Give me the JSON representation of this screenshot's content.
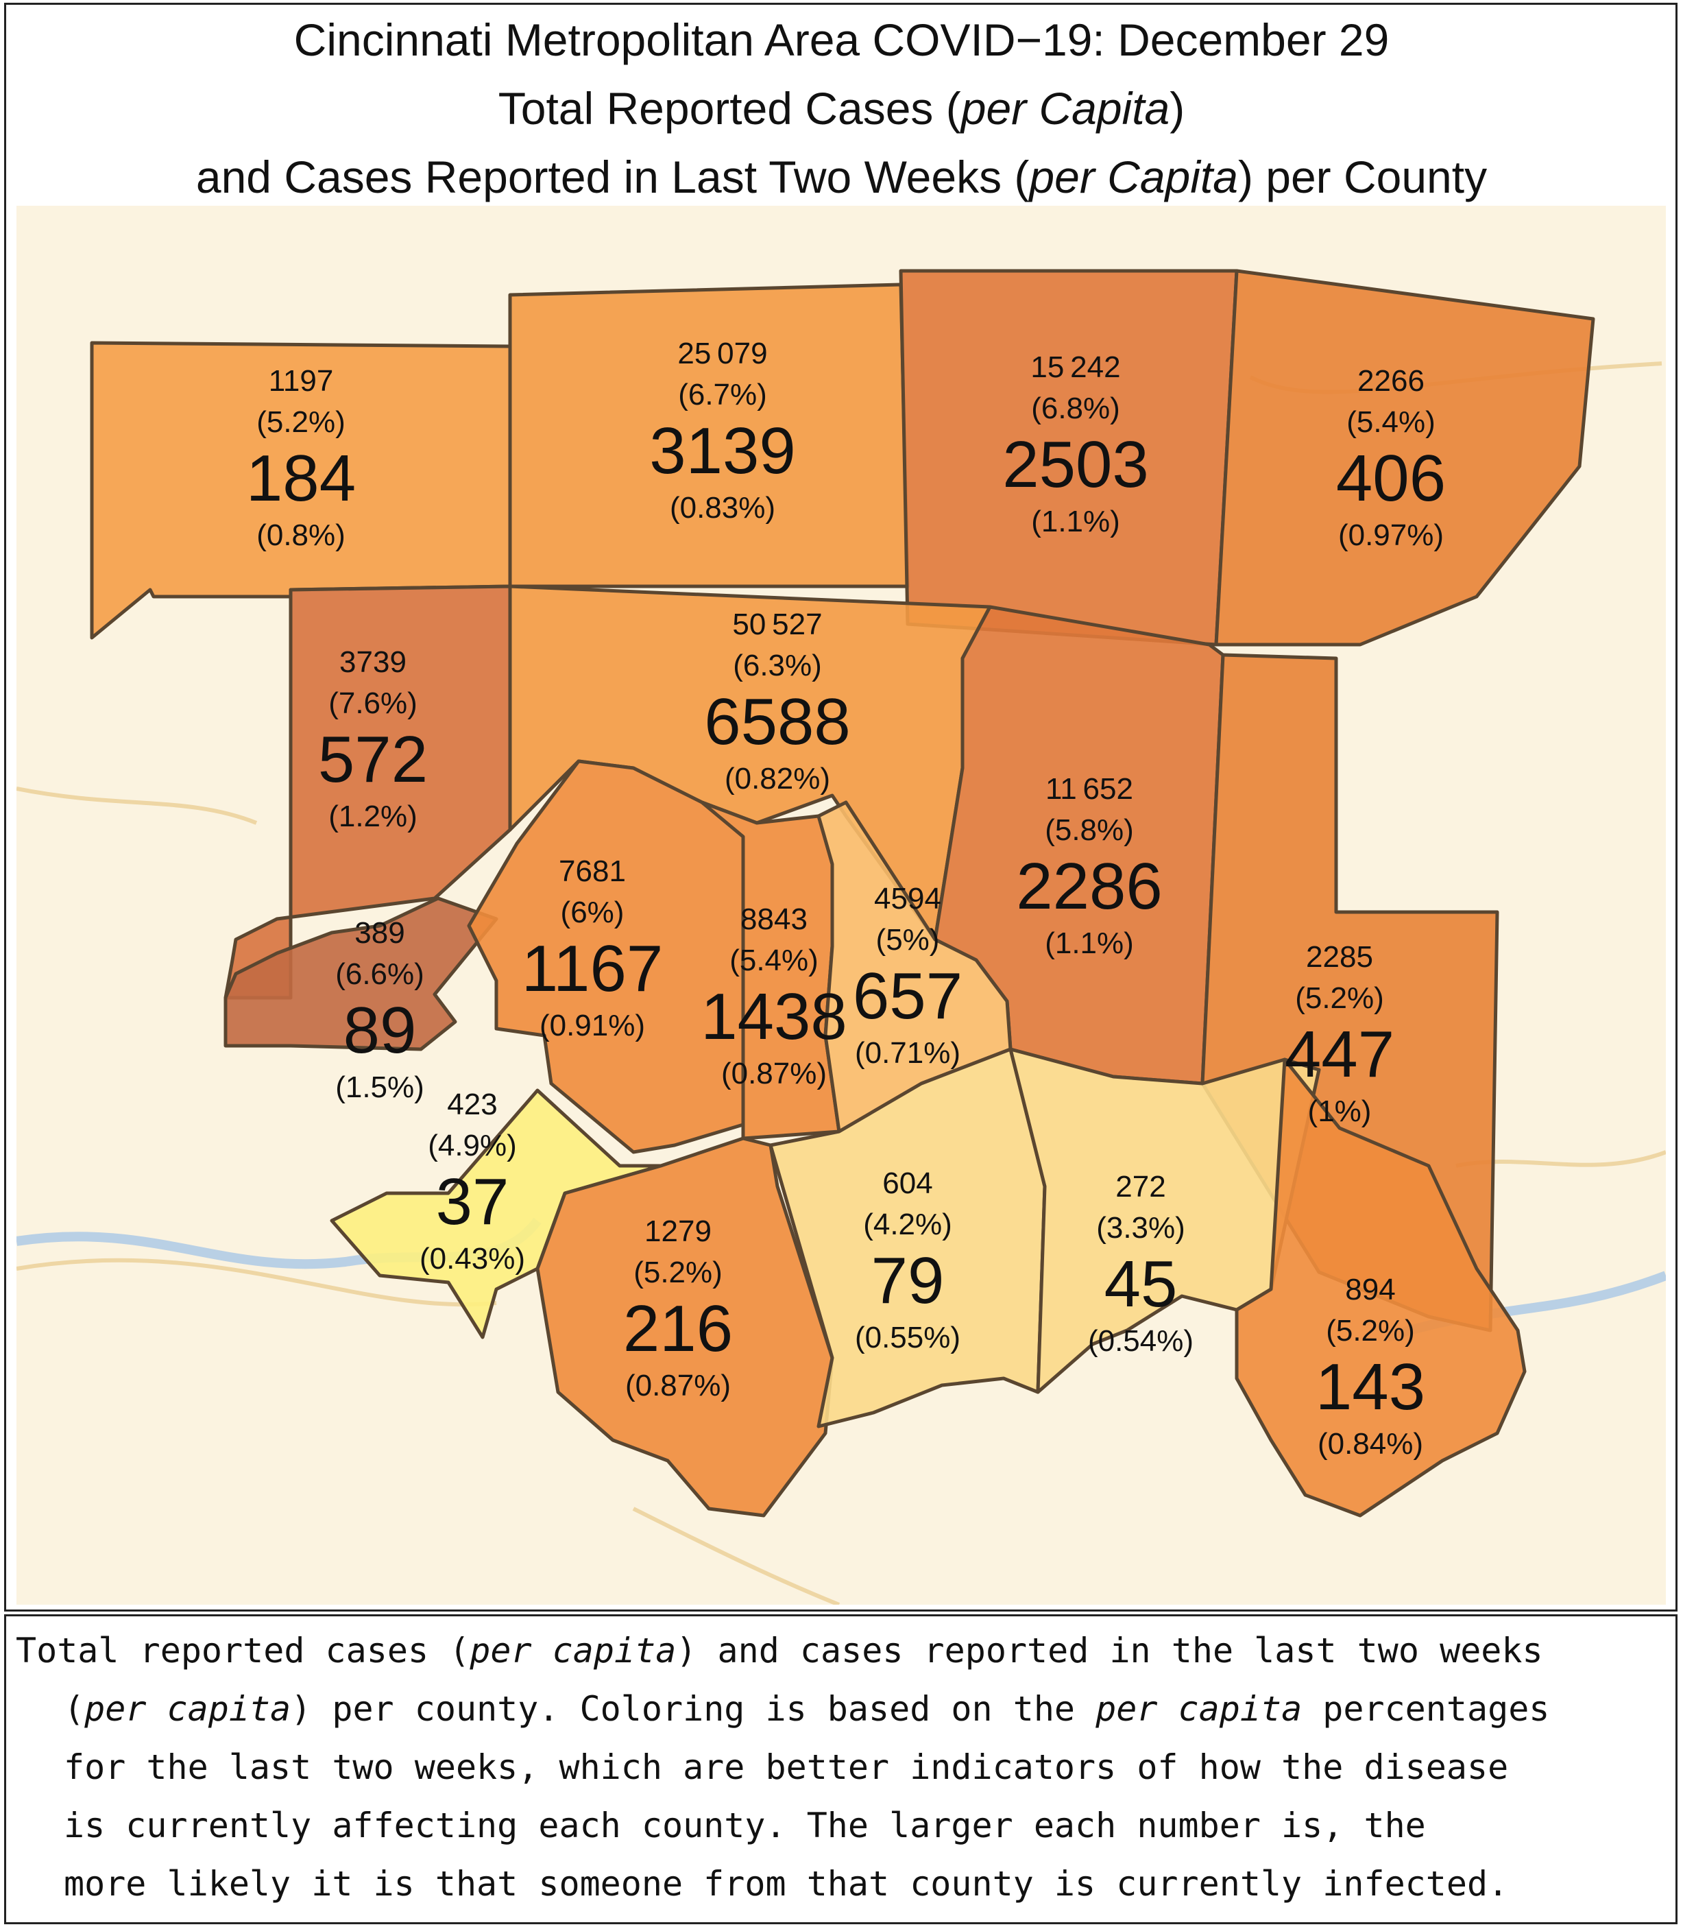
{
  "title": {
    "line1": "Cincinnati Metropolitan Area COVID−19: December 29",
    "line2_pre": "Total Reported Cases (",
    "line2_em": "per Capita",
    "line2_post": ")",
    "line3_pre": "and Cases Reported in Last Two Weeks (",
    "line3_em": "per Capita",
    "line3_post": ") per County"
  },
  "colors": {
    "darkest": "#c26a43",
    "dark": "#e0793b",
    "medium": "#f08c3c",
    "light": "#f59e48",
    "pale": "#fbd98a",
    "palest": "#fdf07f",
    "border": "#5a4630",
    "map_background": "#fbf3e0"
  },
  "counties": [
    {
      "id": "county-nw",
      "total": "1197",
      "total_pct": "(5.2%)",
      "recent": "184",
      "recent_pct": "(0.8%)",
      "color": "#f59e48"
    },
    {
      "id": "county-north-center",
      "total": "25 079",
      "total_pct": "(6.7%)",
      "recent": "3139",
      "recent_pct": "(0.83%)",
      "color": "#f39a44"
    },
    {
      "id": "county-north-east",
      "total": "15 242",
      "total_pct": "(6.8%)",
      "recent": "2503",
      "recent_pct": "(1.1%)",
      "color": "#e0793b"
    },
    {
      "id": "county-far-ne",
      "total": "2266",
      "total_pct": "(5.4%)",
      "recent": "406",
      "recent_pct": "(0.97%)",
      "color": "#e88336"
    },
    {
      "id": "county-west",
      "total": "3739",
      "total_pct": "(7.6%)",
      "recent": "572",
      "recent_pct": "(1.2%)",
      "color": "#d7733f"
    },
    {
      "id": "county-hamilton",
      "total": "50 527",
      "total_pct": "(6.3%)",
      "recent": "6588",
      "recent_pct": "(0.82%)",
      "color": "#f39a44"
    },
    {
      "id": "county-clermont",
      "total": "11 652",
      "total_pct": "(5.8%)",
      "recent": "2286",
      "recent_pct": "(1.1%)",
      "color": "#e0793b"
    },
    {
      "id": "county-brown",
      "total": "2285",
      "total_pct": "(5.2%)",
      "recent": "447",
      "recent_pct": "(1%)",
      "color": "#e88336"
    },
    {
      "id": "county-ohio-in",
      "total": "389",
      "total_pct": "(6.6%)",
      "recent": "89",
      "recent_pct": "(1.5%)",
      "color": "#c26a43"
    },
    {
      "id": "county-boone",
      "total": "7681",
      "total_pct": "(6%)",
      "recent": "1167",
      "recent_pct": "(0.91%)",
      "color": "#f08c3c"
    },
    {
      "id": "county-kenton",
      "total": "8843",
      "total_pct": "(5.4%)",
      "recent": "1438",
      "recent_pct": "(0.87%)",
      "color": "#f08c3c"
    },
    {
      "id": "county-campbell",
      "total": "4594",
      "total_pct": "(5%)",
      "recent": "657",
      "recent_pct": "(0.71%)",
      "color": "#f9bb6a"
    },
    {
      "id": "county-gallatin",
      "total": "423",
      "total_pct": "(4.9%)",
      "recent": "37",
      "recent_pct": "(0.43%)",
      "color": "#fdf07f"
    },
    {
      "id": "county-grant",
      "total": "1279",
      "total_pct": "(5.2%)",
      "recent": "216",
      "recent_pct": "(0.87%)",
      "color": "#f08c3c"
    },
    {
      "id": "county-pendleton",
      "total": "604",
      "total_pct": "(4.2%)",
      "recent": "79",
      "recent_pct": "(0.55%)",
      "color": "#fbd98a"
    },
    {
      "id": "county-bracken",
      "total": "272",
      "total_pct": "(3.3%)",
      "recent": "45",
      "recent_pct": "(0.54%)",
      "color": "#fbd98a"
    },
    {
      "id": "county-mason",
      "total": "894",
      "total_pct": "(5.2%)",
      "recent": "143",
      "recent_pct": "(0.84%)",
      "color": "#f08c3c"
    }
  ],
  "caption": {
    "l1_a": "Total reported cases (",
    "l1_em": "per capita",
    "l1_b": ") and cases reported in the last two weeks",
    "l2_a": "(",
    "l2_em": "per capita",
    "l2_b": ") per county. Coloring is based on the ",
    "l2_em2": "per capita",
    "l2_c": " percentages",
    "l3": "for the last two weeks, which are better indicators of how the disease",
    "l4": "is currently affecting each county. The larger each number is, the",
    "l5": "more likely it is that someone from that county is currently infected."
  }
}
